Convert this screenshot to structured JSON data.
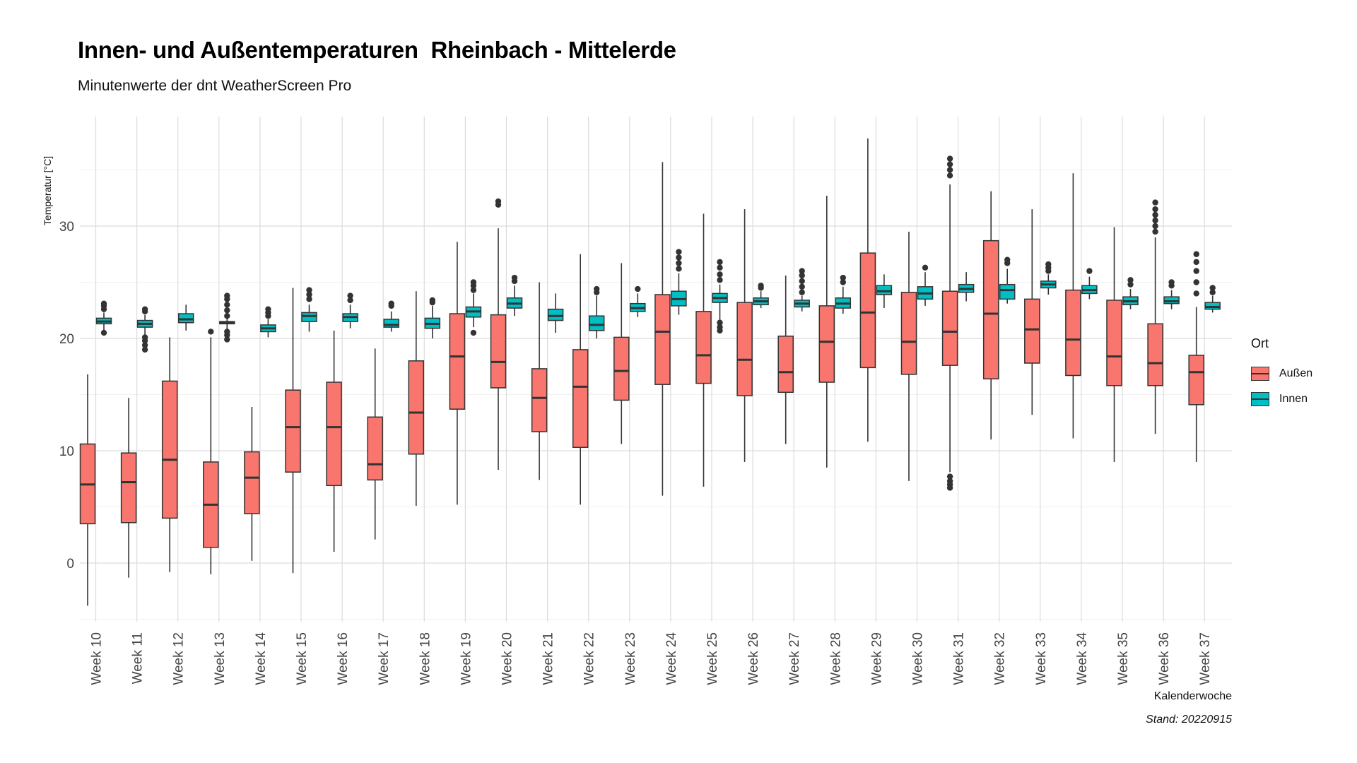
{
  "page": {
    "title": "Innen- und Außentemperaturen  Rheinbach - Mittelerde",
    "subtitle": "Minutenwerte der dnt WeatherScreen Pro",
    "caption": "Stand: 20220915"
  },
  "chart_data": {
    "type": "boxplot",
    "xlabel": "Kalenderwoche",
    "ylabel": "Temperatur [°C]",
    "ylim": [
      -5,
      39
    ],
    "yticks": [
      0,
      10,
      20,
      30
    ],
    "grid": true,
    "legend": {
      "title": "Ort",
      "placement": "right"
    },
    "categories": [
      "Week 10",
      "Week 11",
      "Week 12",
      "Week 13",
      "Week 14",
      "Week 15",
      "Week 16",
      "Week 17",
      "Week 18",
      "Week 19",
      "Week 20",
      "Week 21",
      "Week 22",
      "Week 23",
      "Week 24",
      "Week 25",
      "Week 26",
      "Week 27",
      "Week 28",
      "Week 29",
      "Week 30",
      "Week 31",
      "Week 32",
      "Week 33",
      "Week 34",
      "Week 35",
      "Week 36",
      "Week 37"
    ],
    "series": [
      {
        "name": "Außen",
        "color": "#F8766D",
        "boxes": [
          {
            "min": -3.8,
            "q1": 3.5,
            "median": 7.0,
            "q3": 10.6,
            "max": 16.8,
            "outliers": []
          },
          {
            "min": -1.3,
            "q1": 3.6,
            "median": 7.2,
            "q3": 9.8,
            "max": 14.7,
            "outliers": []
          },
          {
            "min": -0.8,
            "q1": 4.0,
            "median": 9.2,
            "q3": 16.2,
            "max": 20.1,
            "outliers": []
          },
          {
            "min": -1.0,
            "q1": 1.4,
            "median": 5.2,
            "q3": 9.0,
            "max": 20.1,
            "outliers": [
              20.6
            ]
          },
          {
            "min": 0.2,
            "q1": 4.4,
            "median": 7.6,
            "q3": 9.9,
            "max": 13.9,
            "outliers": []
          },
          {
            "min": -0.9,
            "q1": 8.1,
            "median": 12.1,
            "q3": 15.4,
            "max": 24.5,
            "outliers": []
          },
          {
            "min": 1.0,
            "q1": 6.9,
            "median": 12.1,
            "q3": 16.1,
            "max": 20.7,
            "outliers": []
          },
          {
            "min": 2.1,
            "q1": 7.4,
            "median": 8.8,
            "q3": 13.0,
            "max": 19.1,
            "outliers": []
          },
          {
            "min": 5.1,
            "q1": 9.7,
            "median": 13.4,
            "q3": 18.0,
            "max": 24.2,
            "outliers": []
          },
          {
            "min": 5.2,
            "q1": 13.7,
            "median": 18.4,
            "q3": 22.2,
            "max": 28.6,
            "outliers": []
          },
          {
            "min": 8.3,
            "q1": 15.6,
            "median": 17.9,
            "q3": 22.1,
            "max": 29.8,
            "outliers": [
              31.9,
              32.2
            ]
          },
          {
            "min": 7.4,
            "q1": 11.7,
            "median": 14.7,
            "q3": 17.3,
            "max": 25.0,
            "outliers": []
          },
          {
            "min": 5.2,
            "q1": 10.3,
            "median": 15.7,
            "q3": 19.0,
            "max": 27.5,
            "outliers": []
          },
          {
            "min": 10.6,
            "q1": 14.5,
            "median": 17.1,
            "q3": 20.1,
            "max": 26.7,
            "outliers": []
          },
          {
            "min": 6.0,
            "q1": 15.9,
            "median": 20.6,
            "q3": 23.9,
            "max": 35.7,
            "outliers": []
          },
          {
            "min": 6.8,
            "q1": 16.0,
            "median": 18.5,
            "q3": 22.4,
            "max": 31.1,
            "outliers": []
          },
          {
            "min": 9.0,
            "q1": 14.9,
            "median": 18.1,
            "q3": 23.2,
            "max": 31.5,
            "outliers": []
          },
          {
            "min": 10.6,
            "q1": 15.2,
            "median": 17.0,
            "q3": 20.2,
            "max": 25.6,
            "outliers": []
          },
          {
            "min": 8.5,
            "q1": 16.1,
            "median": 19.7,
            "q3": 22.9,
            "max": 32.7,
            "outliers": []
          },
          {
            "min": 10.8,
            "q1": 17.4,
            "median": 22.3,
            "q3": 27.6,
            "max": 37.8,
            "outliers": []
          },
          {
            "min": 7.3,
            "q1": 16.8,
            "median": 19.7,
            "q3": 24.1,
            "max": 29.5,
            "outliers": []
          },
          {
            "min": 8.1,
            "q1": 17.6,
            "median": 20.6,
            "q3": 24.2,
            "max": 33.7,
            "outliers": [
              6.7,
              7.0,
              7.3,
              7.7,
              34.5,
              35.0,
              35.5,
              36.0
            ]
          },
          {
            "min": 11.0,
            "q1": 16.4,
            "median": 22.2,
            "q3": 28.7,
            "max": 33.1,
            "outliers": []
          },
          {
            "min": 13.2,
            "q1": 17.8,
            "median": 20.8,
            "q3": 23.5,
            "max": 31.5,
            "outliers": []
          },
          {
            "min": 11.1,
            "q1": 16.7,
            "median": 19.9,
            "q3": 24.3,
            "max": 34.7,
            "outliers": []
          },
          {
            "min": 9.0,
            "q1": 15.8,
            "median": 18.4,
            "q3": 23.4,
            "max": 29.9,
            "outliers": []
          },
          {
            "min": 11.5,
            "q1": 15.8,
            "median": 17.8,
            "q3": 21.3,
            "max": 29.0,
            "outliers": [
              29.5,
              30.0,
              30.5,
              31.0,
              31.5,
              32.1
            ]
          },
          {
            "min": 9.0,
            "q1": 14.1,
            "median": 17.0,
            "q3": 18.5,
            "max": 22.8,
            "outliers": [
              24.0,
              25.0,
              26.0,
              26.8,
              27.5
            ]
          }
        ]
      },
      {
        "name": "Innen",
        "color": "#00BFC4",
        "boxes": [
          {
            "min": 20.7,
            "q1": 21.3,
            "median": 21.5,
            "q3": 21.8,
            "max": 22.3,
            "outliers": [
              20.5,
              22.6,
              22.9,
              23.1
            ]
          },
          {
            "min": 20.3,
            "q1": 21.0,
            "median": 21.3,
            "q3": 21.6,
            "max": 22.1,
            "outliers": [
              19.0,
              19.4,
              19.8,
              20.1,
              22.4,
              22.6
            ]
          },
          {
            "min": 20.7,
            "q1": 21.4,
            "median": 21.7,
            "q3": 22.2,
            "max": 23.0,
            "outliers": []
          },
          {
            "min": 20.8,
            "q1": 21.3,
            "median": 21.4,
            "q3": 21.5,
            "max": 21.8,
            "outliers": [
              19.9,
              20.3,
              20.6,
              22.0,
              22.5,
              23.0,
              23.5,
              23.8
            ]
          },
          {
            "min": 20.1,
            "q1": 20.6,
            "median": 20.9,
            "q3": 21.2,
            "max": 21.7,
            "outliers": [
              22.0,
              22.3,
              22.6
            ]
          },
          {
            "min": 20.6,
            "q1": 21.5,
            "median": 22.0,
            "q3": 22.3,
            "max": 23.0,
            "outliers": [
              23.5,
              23.9,
              24.3
            ]
          },
          {
            "min": 20.9,
            "q1": 21.5,
            "median": 21.9,
            "q3": 22.2,
            "max": 23.0,
            "outliers": [
              23.4,
              23.8
            ]
          },
          {
            "min": 20.6,
            "q1": 21.0,
            "median": 21.2,
            "q3": 21.7,
            "max": 22.4,
            "outliers": [
              22.9,
              23.1
            ]
          },
          {
            "min": 20.0,
            "q1": 20.9,
            "median": 21.3,
            "q3": 21.8,
            "max": 22.9,
            "outliers": [
              23.2,
              23.4
            ]
          },
          {
            "min": 21.0,
            "q1": 21.9,
            "median": 22.4,
            "q3": 22.8,
            "max": 24.0,
            "outliers": [
              20.5,
              24.3,
              24.7,
              25.0
            ]
          },
          {
            "min": 22.0,
            "q1": 22.7,
            "median": 23.1,
            "q3": 23.6,
            "max": 24.7,
            "outliers": [
              25.1,
              25.4
            ]
          },
          {
            "min": 20.5,
            "q1": 21.6,
            "median": 22.0,
            "q3": 22.6,
            "max": 24.0,
            "outliers": []
          },
          {
            "min": 20.0,
            "q1": 20.7,
            "median": 21.2,
            "q3": 22.0,
            "max": 23.8,
            "outliers": [
              24.1,
              24.4
            ]
          },
          {
            "min": 21.9,
            "q1": 22.4,
            "median": 22.7,
            "q3": 23.1,
            "max": 24.0,
            "outliers": [
              24.4
            ]
          },
          {
            "min": 22.1,
            "q1": 22.9,
            "median": 23.5,
            "q3": 24.2,
            "max": 25.8,
            "outliers": [
              26.2,
              26.7,
              27.2,
              27.7
            ]
          },
          {
            "min": 21.5,
            "q1": 23.2,
            "median": 23.6,
            "q3": 24.0,
            "max": 24.8,
            "outliers": [
              20.7,
              21.0,
              21.4,
              25.2,
              25.7,
              26.3,
              26.8
            ]
          },
          {
            "min": 22.7,
            "q1": 23.0,
            "median": 23.3,
            "q3": 23.6,
            "max": 24.2,
            "outliers": [
              24.5,
              24.7
            ]
          },
          {
            "min": 22.4,
            "q1": 22.8,
            "median": 23.1,
            "q3": 23.4,
            "max": 23.8,
            "outliers": [
              24.1,
              24.6,
              25.1,
              25.6,
              26.0
            ]
          },
          {
            "min": 22.2,
            "q1": 22.7,
            "median": 23.1,
            "q3": 23.6,
            "max": 24.6,
            "outliers": [
              25.0,
              25.4
            ]
          },
          {
            "min": 22.7,
            "q1": 23.9,
            "median": 24.2,
            "q3": 24.7,
            "max": 25.7,
            "outliers": []
          },
          {
            "min": 22.9,
            "q1": 23.5,
            "median": 24.0,
            "q3": 24.6,
            "max": 25.9,
            "outliers": [
              26.3
            ]
          },
          {
            "min": 23.3,
            "q1": 24.1,
            "median": 24.4,
            "q3": 24.8,
            "max": 25.9,
            "outliers": []
          },
          {
            "min": 23.1,
            "q1": 23.5,
            "median": 24.3,
            "q3": 24.8,
            "max": 26.2,
            "outliers": [
              26.7,
              27.0
            ]
          },
          {
            "min": 23.9,
            "q1": 24.5,
            "median": 24.8,
            "q3": 25.1,
            "max": 25.7,
            "outliers": [
              26.0,
              26.3,
              26.6
            ]
          },
          {
            "min": 23.5,
            "q1": 24.0,
            "median": 24.3,
            "q3": 24.7,
            "max": 25.5,
            "outliers": [
              26.0
            ]
          },
          {
            "min": 22.6,
            "q1": 23.0,
            "median": 23.3,
            "q3": 23.7,
            "max": 24.4,
            "outliers": [
              24.8,
              25.2
            ]
          },
          {
            "min": 22.6,
            "q1": 23.1,
            "median": 23.3,
            "q3": 23.7,
            "max": 24.3,
            "outliers": [
              24.7,
              25.0
            ]
          },
          {
            "min": 22.3,
            "q1": 22.6,
            "median": 22.8,
            "q3": 23.2,
            "max": 23.8,
            "outliers": [
              24.1,
              24.5
            ]
          }
        ]
      }
    ]
  }
}
